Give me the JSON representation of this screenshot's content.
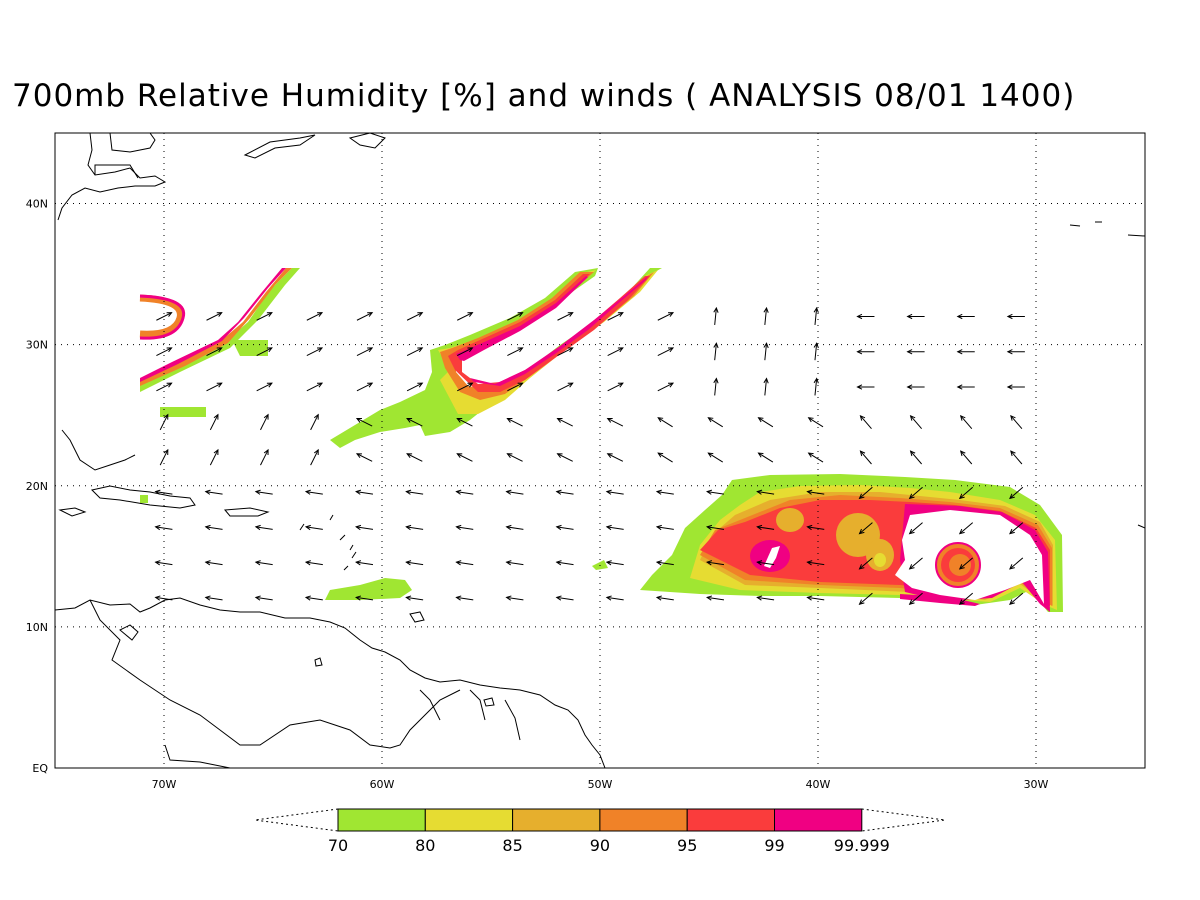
{
  "title": "700mb Relative Humidity [%] and winds ( ANALYSIS 08/01 1400)",
  "map": {
    "lon_range": [
      -75,
      -25
    ],
    "lat_range": [
      0,
      45
    ],
    "lon_ticks": [
      {
        "value": -70,
        "label": "70W"
      },
      {
        "value": -60,
        "label": "60W"
      },
      {
        "value": -50,
        "label": "50W"
      },
      {
        "value": -40,
        "label": "40W"
      },
      {
        "value": -30,
        "label": "30W"
      }
    ],
    "lat_ticks": [
      {
        "value": 0,
        "label": "EQ"
      },
      {
        "value": 10,
        "label": "10N"
      },
      {
        "value": 20,
        "label": "20N"
      },
      {
        "value": 30,
        "label": "30N"
      },
      {
        "value": 40,
        "label": "40N"
      }
    ],
    "grid_lines": "dotted",
    "land_outline_color": "#000000"
  },
  "colorbar": {
    "levels": [
      "70",
      "80",
      "85",
      "90",
      "95",
      "99",
      "99.999"
    ],
    "colors": [
      "#a0e632",
      "#e6dc32",
      "#e6af2d",
      "#f08228",
      "#fa3c3c",
      "#f00082"
    ]
  }
}
